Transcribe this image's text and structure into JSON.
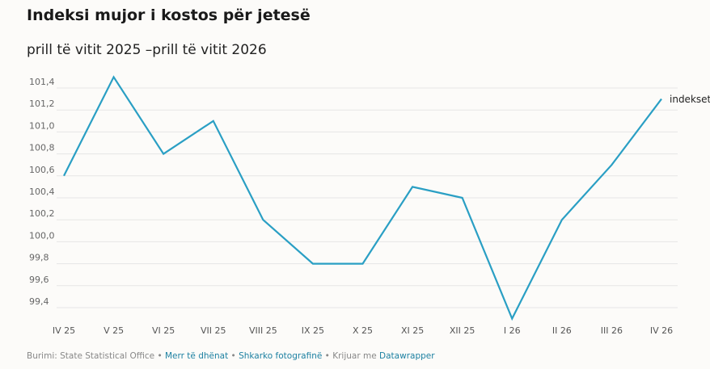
{
  "chart_data": {
    "type": "line",
    "title": "Indeksi mujor i kostos për jetesë",
    "subtitle": "prill të vitit 2025 –prill të vitit 2026",
    "categories": [
      "IV 25",
      "V 25",
      "VI 25",
      "VII 25",
      "VIII 25",
      "IX 25",
      "X 25",
      "XI 25",
      "XII 25",
      "I 26",
      "II 26",
      "III 26",
      "IV 26"
    ],
    "series": [
      {
        "name": "indekset",
        "color": "#2a9fc4",
        "values": [
          100.6,
          101.5,
          100.8,
          101.1,
          100.2,
          99.8,
          99.8,
          100.5,
          100.4,
          99.3,
          100.2,
          100.7,
          101.3
        ]
      }
    ],
    "yticks": [
      99.4,
      99.6,
      99.8,
      100.0,
      100.2,
      100.4,
      100.6,
      100.8,
      101.0,
      101.2,
      101.4
    ],
    "ytick_labels": [
      "99,4",
      "99,6",
      "99,8",
      "100,0",
      "100,2",
      "100,4",
      "100,6",
      "100,8",
      "101,0",
      "101,2",
      "101,4"
    ],
    "ylim": [
      99.3,
      101.55
    ],
    "grid": true,
    "legend": "series label at end of line"
  },
  "footer": {
    "source": "Burimi: State Statistical Office",
    "sep": " • ",
    "get_data": "Merr të dhënat",
    "download": "Shkarko fotografinë",
    "created_with": "Krijuar me",
    "tool": "Datawrapper"
  }
}
